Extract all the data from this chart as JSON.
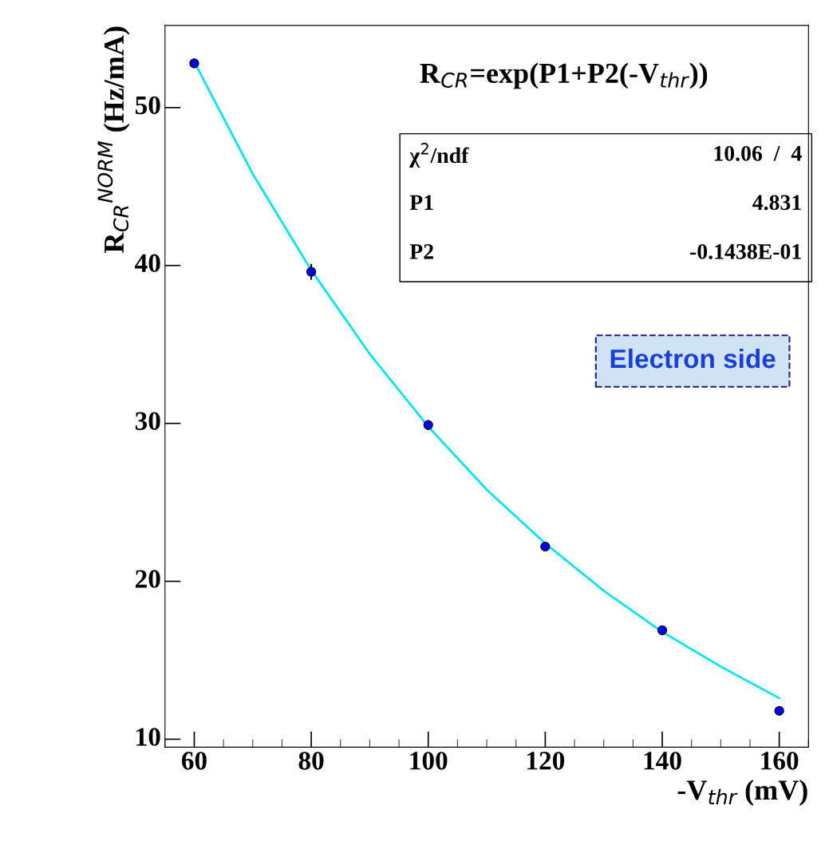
{
  "chart_data": {
    "type": "scatter",
    "xlabel": "-V$_{thr}$ (mV)",
    "ylabel": "R$_{CR}$$^{NORM}$ (Hz/mA)",
    "xlim": [
      55,
      165
    ],
    "ylim": [
      9.5,
      55.2
    ],
    "xticks": [
      60,
      80,
      100,
      120,
      140,
      160
    ],
    "yticks": [
      10,
      20,
      30,
      40,
      50
    ],
    "grid": false,
    "marker": "circle",
    "series": [
      {
        "type": "scatter",
        "color": "#0000ee",
        "x": [
          60,
          80,
          100,
          120,
          140,
          160
        ],
        "values": [
          52.8,
          39.6,
          29.9,
          22.2,
          16.9,
          11.8
        ],
        "errors": [
          0.3,
          0.5,
          0.3,
          null,
          null,
          null
        ]
      },
      {
        "type": "line",
        "color": "#00e5ee",
        "marker": "none",
        "x": [
          60,
          70,
          80,
          90,
          100,
          110,
          120,
          130,
          140,
          150,
          160
        ],
        "values": [
          52.9,
          45.8,
          39.7,
          34.4,
          29.8,
          25.8,
          22.4,
          19.4,
          16.8,
          14.6,
          12.6
        ]
      }
    ],
    "annotations": [
      "R$_{CR}$=exp(P1+P2(-V$_{thr}$))",
      "χ$^{2}$/ndf",
      "10.06  /  4",
      "P1",
      "4.831",
      "P2",
      "-0.1438E-01",
      "Electron side"
    ]
  }
}
